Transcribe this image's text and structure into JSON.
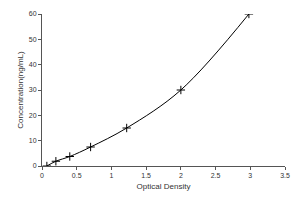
{
  "chart_data": {
    "type": "line",
    "x_label": "Optical Density",
    "y_label": "Concentration(ng/mL)",
    "x": [
      0.07,
      0.2,
      0.4,
      0.7,
      1.22,
      2.0,
      2.98
    ],
    "values": [
      0,
      1.88,
      3.75,
      7.5,
      15,
      30,
      60
    ],
    "color": "#000000",
    "marker": "cross",
    "line_style": "solid",
    "xlim": [
      0,
      3.5
    ],
    "xticks": [
      0,
      0.5,
      1,
      1.5,
      2,
      2.5,
      3,
      3.5
    ],
    "ylim": [
      0,
      60
    ],
    "yticks": [
      0,
      10,
      20,
      30,
      40,
      50,
      60
    ],
    "grid": false
  }
}
